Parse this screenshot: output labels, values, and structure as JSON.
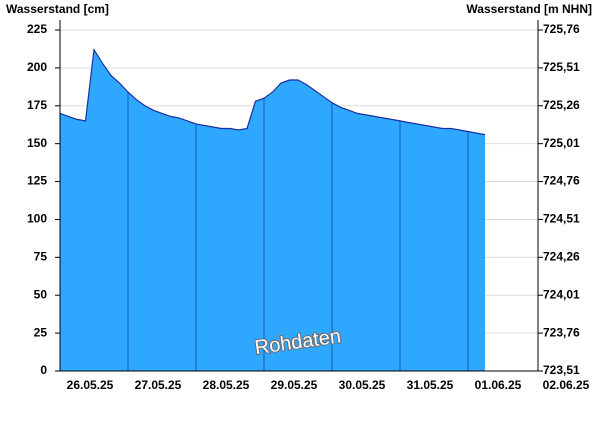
{
  "chart_data": {
    "type": "area",
    "y_label": "Wasserstand [cm]",
    "y2_label": "Wasserstand [m NHN]",
    "annotation": "Rohdaten",
    "categories": [
      null,
      null,
      null,
      null,
      "26.05.25",
      null,
      null,
      null,
      null,
      null,
      null,
      null,
      "27.05.25",
      null,
      null,
      null,
      null,
      null,
      null,
      null,
      "28.05.25",
      null,
      null,
      null,
      null,
      null,
      null,
      null,
      "29.05.25",
      null,
      null,
      null,
      null,
      null,
      null,
      null,
      "30.05.25",
      null,
      null,
      null,
      null,
      null,
      null,
      null,
      "31.05.25",
      null,
      null,
      null,
      null,
      null,
      null,
      null,
      "01.06.25",
      null,
      null,
      null,
      null,
      null,
      null,
      null,
      "02.06.25"
    ],
    "series": [
      {
        "name": "Wasserstand",
        "color": "#2ea8ff",
        "line_color": "#1b2f9e",
        "values": [
          170,
          168,
          166,
          165,
          212,
          203,
          195,
          190,
          184,
          179,
          175,
          172,
          170,
          168,
          167,
          165,
          163,
          162,
          161,
          160,
          160,
          159,
          160,
          178,
          180,
          184,
          190,
          192,
          192,
          189,
          185,
          181,
          177,
          174,
          172,
          170,
          169,
          168,
          167,
          166,
          165,
          164,
          163,
          162,
          161,
          160,
          160,
          159,
          158,
          157,
          156,
          null,
          null,
          null,
          null,
          null,
          null,
          null,
          null,
          null,
          null
        ]
      }
    ],
    "ylim": [
      0,
      231.6
    ],
    "yticks": [
      0,
      25,
      50,
      75,
      100,
      125,
      150,
      175,
      200,
      225
    ],
    "y2lim": [
      723.51,
      725.826
    ],
    "y2ticks": [
      {
        "value": 723.51,
        "label": "723,51"
      },
      {
        "value": 723.76,
        "label": "723,76"
      },
      {
        "value": 724.01,
        "label": "724,01"
      },
      {
        "value": 724.26,
        "label": "724,26"
      },
      {
        "value": 724.51,
        "label": "724,51"
      },
      {
        "value": 724.76,
        "label": "724,76"
      },
      {
        "value": 725.01,
        "label": "725,01"
      },
      {
        "value": 725.26,
        "label": "725,26"
      },
      {
        "value": 725.51,
        "label": "725,51"
      },
      {
        "value": 725.76,
        "label": "725,76"
      }
    ],
    "grid": true
  }
}
